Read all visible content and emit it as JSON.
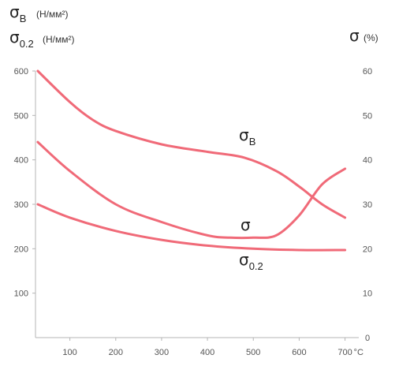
{
  "chart_data": {
    "type": "line",
    "x_axis": {
      "range": [
        25,
        730
      ],
      "ticks": [
        100,
        200,
        300,
        400,
        500,
        600,
        700
      ],
      "unit": "°C"
    },
    "y_left": {
      "range": [
        0,
        600
      ],
      "ticks": [
        100,
        200,
        300,
        400,
        500,
        600
      ],
      "labels": [
        {
          "symbol": "σ",
          "sub": "B",
          "unit": "(Н/мм²)"
        },
        {
          "symbol": "σ",
          "sub": "0.2",
          "unit": "(Н/мм²)"
        }
      ]
    },
    "y_right": {
      "range": [
        0,
        60
      ],
      "ticks": [
        0,
        10,
        20,
        30,
        40,
        50,
        60
      ],
      "label": {
        "symbol": "σ",
        "unit": "(%)"
      }
    },
    "series": [
      {
        "name": "σB",
        "label_symbol": "σ",
        "label_sub": "B",
        "axis": "left",
        "x": [
          30,
          100,
          150,
          200,
          300,
          400,
          480,
          550,
          600,
          650,
          700
        ],
        "y": [
          600,
          530,
          490,
          465,
          435,
          418,
          405,
          375,
          340,
          300,
          270
        ]
      },
      {
        "name": "σ",
        "label_symbol": "σ",
        "label_sub": "",
        "axis": "right",
        "x": [
          30,
          100,
          200,
          300,
          400,
          450,
          500,
          550,
          600,
          650,
          700
        ],
        "y": [
          44,
          37.5,
          30,
          26,
          23,
          22.5,
          22.5,
          23,
          27.5,
          34.5,
          38
        ]
      },
      {
        "name": "σ0.2",
        "label_symbol": "σ",
        "label_sub": "0.2",
        "axis": "left",
        "x": [
          30,
          100,
          200,
          300,
          400,
          500,
          600,
          700
        ],
        "y": [
          300,
          270,
          240,
          220,
          207,
          200,
          197,
          197
        ]
      }
    ],
    "legend": "inline labels",
    "grid": false
  }
}
